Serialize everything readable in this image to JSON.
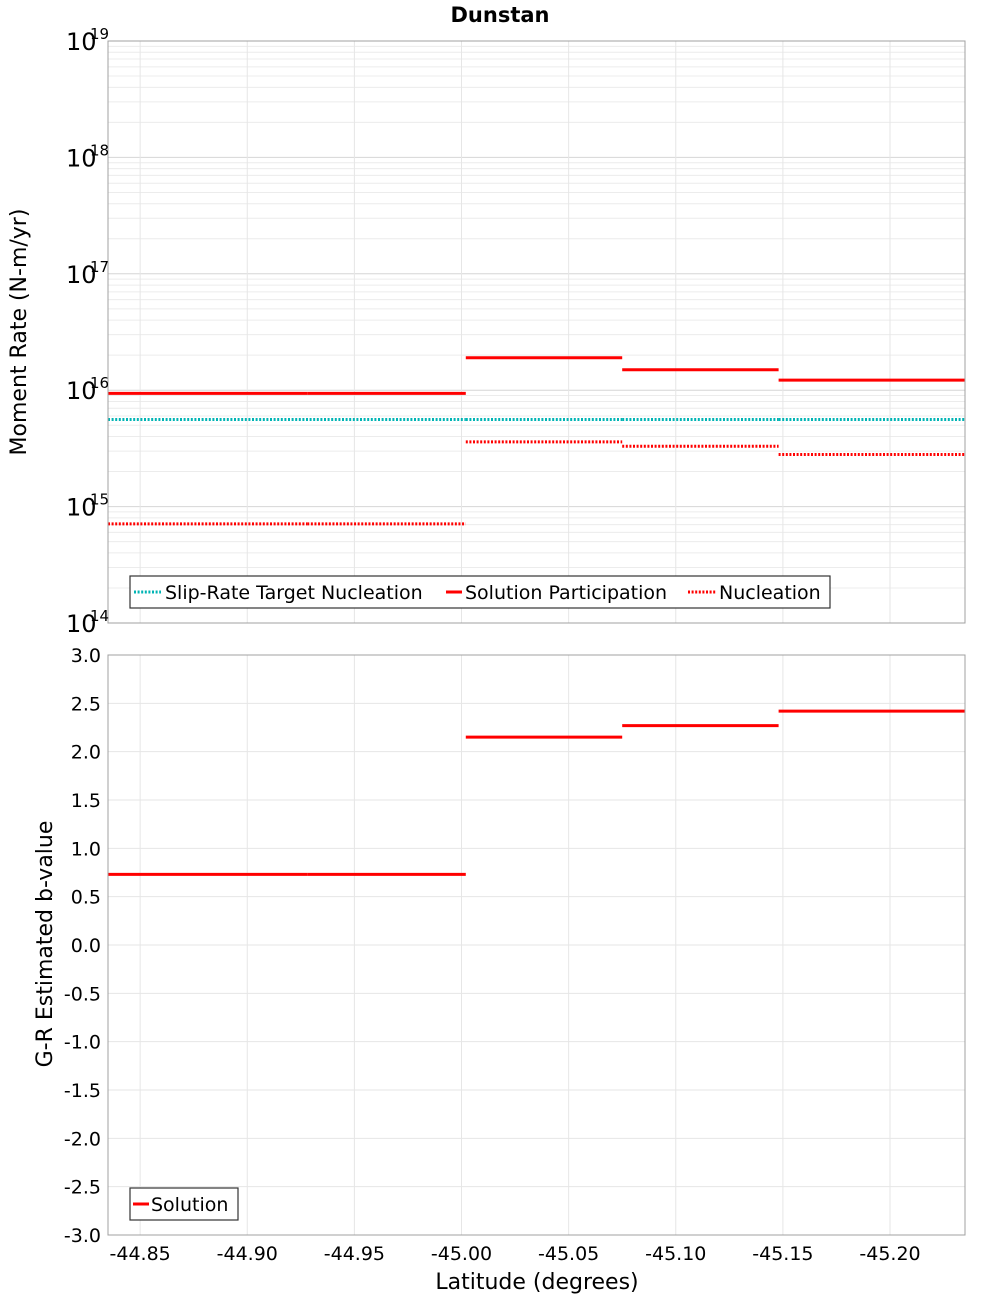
{
  "chart_data": [
    {
      "type": "line",
      "title": "Dunstan",
      "xlabel": "Latitude (degrees)",
      "ylabel": "Moment Rate (N-m/yr)",
      "yscale": "log",
      "xlim": [
        -44.835,
        -45.235
      ],
      "ylim": [
        100000000000000.0,
        1e+19
      ],
      "y_ticks": [
        {
          "base": "10",
          "exp": "14",
          "value": 100000000000000.0
        },
        {
          "base": "10",
          "exp": "15",
          "value": 1000000000000000.0
        },
        {
          "base": "10",
          "exp": "16",
          "value": 1e+16
        },
        {
          "base": "10",
          "exp": "17",
          "value": 1e+17
        },
        {
          "base": "10",
          "exp": "18",
          "value": 1e+18
        },
        {
          "base": "10",
          "exp": "19",
          "value": 1e+19
        }
      ],
      "legend_position": "bottom-left",
      "series": [
        {
          "name": "Slip-Rate Target Nucleation",
          "color": "#00b4b4",
          "style": "dotted",
          "segments": [
            {
              "x0": -44.835,
              "x1": -45.002,
              "y": 5600000000000000.0
            },
            {
              "x0": -45.002,
              "x1": -45.075,
              "y": 5600000000000000.0
            },
            {
              "x0": -45.075,
              "x1": -45.148,
              "y": 5600000000000000.0
            },
            {
              "x0": -45.148,
              "x1": -45.235,
              "y": 5600000000000000.0
            }
          ]
        },
        {
          "name": "Solution Participation",
          "color": "#ff0000",
          "style": "solid",
          "segments": [
            {
              "x0": -44.835,
              "x1": -44.928,
              "y": 9400000000000000.0
            },
            {
              "x0": -44.928,
              "x1": -45.002,
              "y": 9400000000000000.0
            },
            {
              "x0": -45.002,
              "x1": -45.075,
              "y": 1.9e+16
            },
            {
              "x0": -45.075,
              "x1": -45.148,
              "y": 1.5e+16
            },
            {
              "x0": -45.148,
              "x1": -45.235,
              "y": 1.22e+16
            }
          ]
        },
        {
          "name": "Nucleation",
          "color": "#ff0000",
          "style": "dotted",
          "segments": [
            {
              "x0": -44.835,
              "x1": -44.928,
              "y": 710000000000000.0
            },
            {
              "x0": -44.928,
              "x1": -45.002,
              "y": 710000000000000.0
            },
            {
              "x0": -45.002,
              "x1": -45.075,
              "y": 3600000000000000.0
            },
            {
              "x0": -45.075,
              "x1": -45.148,
              "y": 3300000000000000.0
            },
            {
              "x0": -45.148,
              "x1": -45.235,
              "y": 2800000000000000.0
            }
          ]
        }
      ]
    },
    {
      "type": "line",
      "title": "",
      "xlabel": "Latitude (degrees)",
      "ylabel": "G-R Estimated b-value",
      "xlim": [
        -44.835,
        -45.235
      ],
      "ylim": [
        -3.0,
        3.0
      ],
      "x_ticks": [
        "-44.85",
        "-44.90",
        "-44.95",
        "-45.00",
        "-45.05",
        "-45.10",
        "-45.15",
        "-45.20"
      ],
      "x_tick_values": [
        -44.85,
        -44.9,
        -44.95,
        -45.0,
        -45.05,
        -45.1,
        -45.15,
        -45.2
      ],
      "y_ticks": [
        "3.0",
        "2.5",
        "2.0",
        "1.5",
        "1.0",
        "0.5",
        "0.0",
        "-0.5",
        "-1.0",
        "-1.5",
        "-2.0",
        "-2.5",
        "-3.0"
      ],
      "y_tick_values": [
        3.0,
        2.5,
        2.0,
        1.5,
        1.0,
        0.5,
        0.0,
        -0.5,
        -1.0,
        -1.5,
        -2.0,
        -2.5,
        -3.0
      ],
      "legend_position": "bottom-left",
      "series": [
        {
          "name": "Solution",
          "color": "#ff0000",
          "style": "solid",
          "segments": [
            {
              "x0": -44.835,
              "x1": -44.928,
              "y": 0.73
            },
            {
              "x0": -44.928,
              "x1": -45.002,
              "y": 0.73
            },
            {
              "x0": -45.002,
              "x1": -45.075,
              "y": 2.15
            },
            {
              "x0": -45.075,
              "x1": -45.148,
              "y": 2.27
            },
            {
              "x0": -45.148,
              "x1": -45.235,
              "y": 2.42
            }
          ]
        }
      ]
    }
  ]
}
